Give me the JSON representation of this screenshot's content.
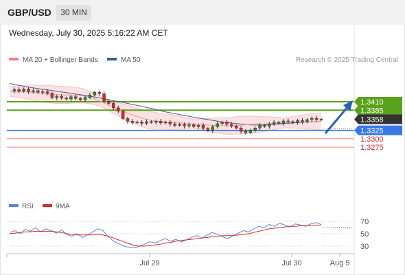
{
  "header": {
    "symbol": "GBP/USD",
    "timeframe": "30 MIN",
    "datetime": "Wednesday, July 30, 2025 5:16:22 AM CET"
  },
  "colors": {
    "support_resistance_green": "#5aa21c",
    "current_price_box": "#333333",
    "pivot_blue": "#3a78e6",
    "support_red": "#f08080",
    "ma50": "#3d5a99",
    "bollinger_fill": "#fbe1e1",
    "candle_up": "#2e8b2e",
    "candle_down": "#d42b2b",
    "rsi": "#5b84d6",
    "rsi_ma": "#d42b2b",
    "arrow": "#2b62b8"
  },
  "chart_data": {
    "type": "candlestick",
    "pair": "GBP/USD",
    "timeframe": "30 MIN",
    "legend": [
      {
        "label": "MA 20 + Bollinger Bands",
        "color": "#f08080"
      },
      {
        "label": "MA 50",
        "color": "#3d5a99"
      }
    ],
    "copyright": "Research © 2025 Trading Central",
    "price_levels": [
      {
        "value": "1.3410",
        "kind": "resistance"
      },
      {
        "value": "1.3385",
        "kind": "resistance"
      },
      {
        "value": "1.3358",
        "kind": "current"
      },
      {
        "value": "1.3325",
        "kind": "pivot"
      },
      {
        "value": "1.3300",
        "kind": "support"
      },
      {
        "value": "1.3275",
        "kind": "support"
      }
    ],
    "x_ticks": [
      "Jul 29",
      "Jul 30",
      "Aug 5"
    ],
    "close_path": [
      1.3442,
      1.3446,
      1.3441,
      1.3448,
      1.344,
      1.3443,
      1.3438,
      1.344,
      1.3435,
      1.3422,
      1.3426,
      1.3421,
      1.3418,
      1.3425,
      1.342,
      1.3416,
      1.3423,
      1.343,
      1.3438,
      1.3434,
      1.3412,
      1.3405,
      1.3392,
      1.3382,
      1.336,
      1.3352,
      1.3348,
      1.335,
      1.3346,
      1.3351,
      1.3349,
      1.3352,
      1.3347,
      1.335,
      1.3344,
      1.334,
      1.3343,
      1.3338,
      1.3342,
      1.3336,
      1.334,
      1.3331,
      1.3325,
      1.3336,
      1.3345,
      1.335,
      1.3343,
      1.3338,
      1.3332,
      1.3322,
      1.3318,
      1.3326,
      1.3332,
      1.334,
      1.3337,
      1.3344,
      1.3349,
      1.3346,
      1.3353,
      1.3351,
      1.3348,
      1.3354,
      1.335,
      1.3357,
      1.3361,
      1.3357,
      1.3358
    ],
    "ma20": [
      1.344,
      1.344,
      1.3439,
      1.3436,
      1.3433,
      1.3431,
      1.343,
      1.343,
      1.3428,
      1.3421,
      1.341,
      1.3398,
      1.3386,
      1.3375,
      1.3365,
      1.3357,
      1.3352,
      1.335,
      1.3349,
      1.3346,
      1.3344,
      1.3342,
      1.334,
      1.3339,
      1.3338,
      1.334,
      1.3342,
      1.3343,
      1.3344,
      1.3346,
      1.3347,
      1.3349,
      1.335,
      1.3351,
      1.3352
    ],
    "ma50": [
      1.3464,
      1.3456,
      1.3449,
      1.3443,
      1.3437,
      1.3431,
      1.3424,
      1.3416,
      1.3408,
      1.3399,
      1.339,
      1.338,
      1.3372,
      1.3364,
      1.3357,
      1.335,
      1.3345,
      1.3341,
      1.3341,
      1.3344,
      1.3347,
      1.335,
      1.3352
    ],
    "rsi": {
      "legend": [
        {
          "label": "RSI",
          "color": "#5b84d6"
        },
        {
          "label": "9MA",
          "color": "#d42b2b"
        }
      ],
      "ticks": [
        "70",
        "50",
        "30"
      ],
      "values": [
        52,
        55,
        50,
        57,
        54,
        60,
        53,
        58,
        55,
        51,
        56,
        49,
        46,
        50,
        44,
        48,
        53,
        58,
        55,
        45,
        38,
        34,
        30,
        28,
        27,
        30,
        33,
        37,
        35,
        39,
        42,
        38,
        41,
        37,
        40,
        44,
        47,
        43,
        48,
        52,
        49,
        45,
        42,
        47,
        51,
        55,
        53,
        58,
        62,
        60,
        65,
        62,
        67,
        64,
        61,
        66,
        64,
        62,
        66,
        68,
        65
      ],
      "ma9": [
        50,
        51,
        52,
        53,
        53,
        54,
        54,
        54,
        54,
        53,
        52,
        50,
        49,
        48,
        48,
        48,
        48,
        49,
        48,
        46,
        43,
        40,
        37,
        34,
        31,
        30,
        30,
        31,
        32,
        33,
        35,
        36,
        38,
        39,
        40,
        41,
        42,
        43,
        44,
        45,
        46,
        47,
        47,
        47,
        48,
        49,
        50,
        52,
        54,
        56,
        58,
        59,
        60,
        61,
        62,
        62,
        63,
        63,
        63,
        64,
        64
      ]
    }
  }
}
